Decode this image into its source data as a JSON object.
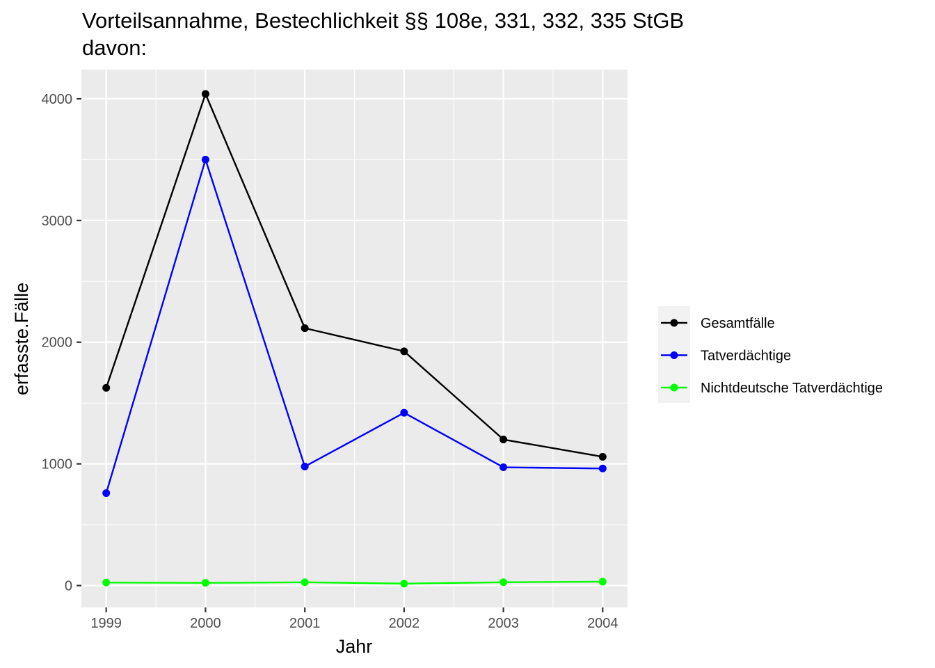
{
  "chart_data": {
    "type": "line",
    "title": "Vorteilsannahme, Bestechlichkeit §§ 108e, 331, 332, 335 StGB",
    "subtitle": "davon:",
    "xlabel": "Jahr",
    "ylabel": "erfasste.Fälle",
    "x": [
      1999,
      2000,
      2001,
      2002,
      2003,
      2004
    ],
    "x_ticks": [
      "1999",
      "2000",
      "2001",
      "2002",
      "2003",
      "2004"
    ],
    "y_ticks": [
      "0",
      "1000",
      "2000",
      "3000",
      "4000"
    ],
    "xlim": [
      1998.75,
      2004.25
    ],
    "ylim": [
      -180,
      4240
    ],
    "grid": true,
    "legend_position": "right",
    "series": [
      {
        "name": "Gesamtfälle",
        "color": "#000000",
        "values": [
          1625,
          4040,
          2115,
          1925,
          1200,
          1058
        ]
      },
      {
        "name": "Tatverdächtige",
        "color": "#0000ff",
        "values": [
          760,
          3500,
          978,
          1420,
          972,
          962
        ]
      },
      {
        "name": "Nichtdeutsche Tatverdächtige",
        "color": "#00ff00",
        "values": [
          25,
          22,
          27,
          16,
          27,
          32
        ]
      }
    ]
  }
}
